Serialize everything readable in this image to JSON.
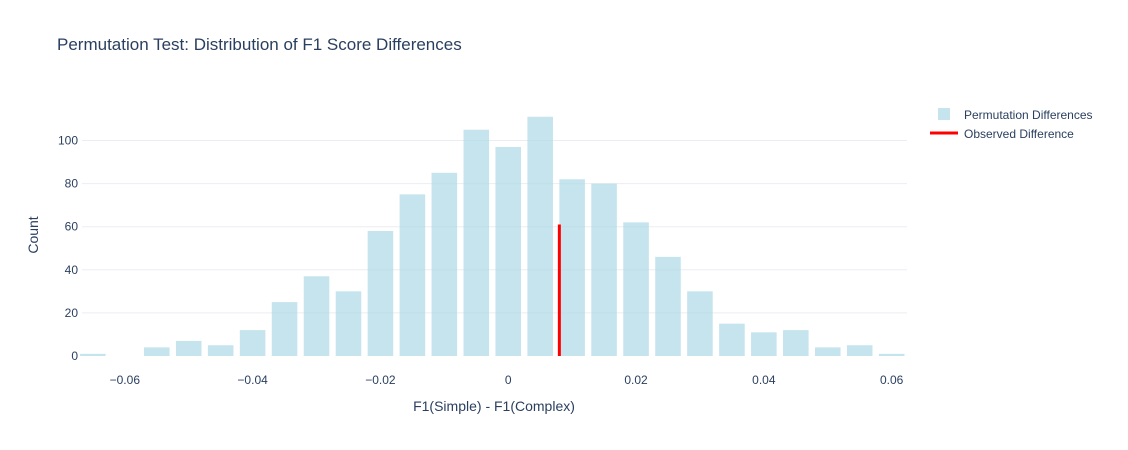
{
  "chart_data": {
    "type": "bar",
    "title": "Permutation Test: Distribution of F1 Score Differences",
    "xlabel": "F1(Simple) - F1(Complex)",
    "ylabel": "Count",
    "xlim": [
      -0.0667,
      0.0624
    ],
    "ylim": [
      0,
      116
    ],
    "x_ticks": [
      -0.06,
      -0.04,
      -0.02,
      0,
      0.02,
      0.04,
      0.06
    ],
    "x_tick_labels": [
      "−0.06",
      "−0.04",
      "−0.02",
      "0",
      "0.02",
      "0.04",
      "0.06"
    ],
    "y_ticks": [
      0,
      20,
      40,
      60,
      80,
      100
    ],
    "y_tick_labels": [
      "0",
      "20",
      "40",
      "60",
      "80",
      "100"
    ],
    "grid": true,
    "legend_position": "top-right",
    "series": [
      {
        "name": "Permutation Differences",
        "type": "histogram",
        "color": "#add8e6",
        "bin_width": 0.005,
        "bin_centers": [
          -0.065,
          -0.06,
          -0.055,
          -0.05,
          -0.045,
          -0.04,
          -0.035,
          -0.03,
          -0.025,
          -0.02,
          -0.015,
          -0.01,
          -0.005,
          0,
          0.005,
          0.01,
          0.015,
          0.02,
          0.025,
          0.03,
          0.035,
          0.04,
          0.045,
          0.05,
          0.055,
          0.06
        ],
        "values": [
          1,
          0,
          4,
          7,
          5,
          12,
          25,
          37,
          30,
          58,
          75,
          85,
          105,
          97,
          111,
          82,
          80,
          62,
          46,
          30,
          15,
          11,
          12,
          4,
          5,
          1
        ]
      },
      {
        "name": "Observed Difference",
        "type": "line",
        "color": "#ff0000",
        "x": [
          0.008,
          0.008
        ],
        "y": [
          0,
          61
        ]
      }
    ]
  }
}
